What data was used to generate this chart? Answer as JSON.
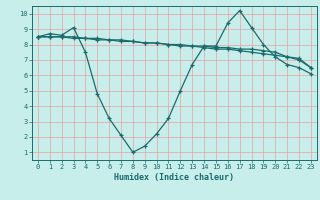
{
  "xlabel": "Humidex (Indice chaleur)",
  "background_color": "#c8eeec",
  "grid_color": "#e8a0a0",
  "line_color": "#1a6b6b",
  "xlim": [
    -0.5,
    23.5
  ],
  "ylim": [
    0.5,
    10.5
  ],
  "yticks": [
    1,
    2,
    3,
    4,
    5,
    6,
    7,
    8,
    9,
    10
  ],
  "xticks": [
    0,
    1,
    2,
    3,
    4,
    5,
    6,
    7,
    8,
    9,
    10,
    11,
    12,
    13,
    14,
    15,
    16,
    17,
    18,
    19,
    20,
    21,
    22,
    23
  ],
  "series": [
    {
      "x": [
        0,
        1,
        2,
        3,
        4,
        5,
        6,
        7,
        8,
        9,
        10,
        11,
        12,
        13,
        14,
        15,
        16,
        17,
        18,
        19,
        20,
        21,
        22,
        23
      ],
      "y": [
        8.5,
        8.7,
        8.6,
        9.1,
        7.5,
        4.8,
        3.2,
        2.1,
        1.0,
        1.4,
        2.2,
        3.2,
        5.0,
        6.7,
        7.9,
        7.9,
        9.4,
        10.2,
        9.1,
        8.0,
        7.2,
        6.7,
        6.5,
        6.1
      ]
    },
    {
      "x": [
        0,
        1,
        2,
        3,
        4,
        5,
        6,
        7,
        8,
        9,
        10,
        11,
        12,
        13,
        14,
        15,
        16,
        17,
        18,
        19,
        20,
        21,
        22,
        23
      ],
      "y": [
        8.5,
        8.5,
        8.5,
        8.4,
        8.4,
        8.3,
        8.3,
        8.2,
        8.2,
        8.1,
        8.1,
        8.0,
        8.0,
        7.9,
        7.9,
        7.8,
        7.8,
        7.7,
        7.7,
        7.6,
        7.5,
        7.2,
        7.0,
        6.5
      ]
    },
    {
      "x": [
        0,
        1,
        2,
        3,
        4,
        5,
        6,
        7,
        8,
        9,
        10,
        11,
        12,
        13,
        14,
        15,
        16,
        17,
        18,
        19,
        20,
        21,
        22,
        23
      ],
      "y": [
        8.5,
        8.5,
        8.5,
        8.5,
        8.4,
        8.4,
        8.3,
        8.3,
        8.2,
        8.1,
        8.1,
        8.0,
        7.9,
        7.9,
        7.8,
        7.7,
        7.7,
        7.6,
        7.5,
        7.4,
        7.3,
        7.2,
        7.1,
        6.5
      ]
    }
  ]
}
